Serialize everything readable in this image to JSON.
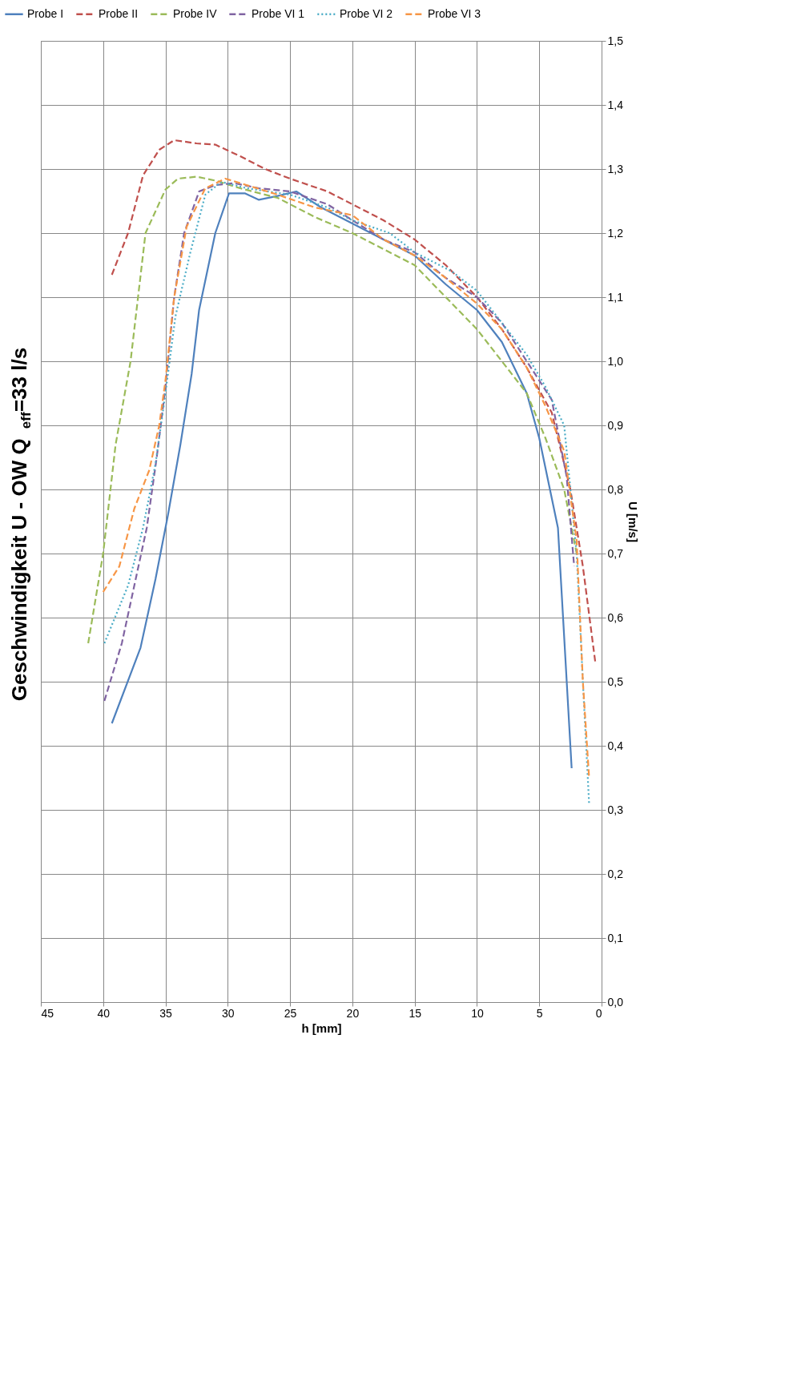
{
  "chart_data": {
    "type": "line",
    "title": "Geschwindigkeit U - OW Q$_{eff}$=33 l/s",
    "xlabel": "h [mm]",
    "ylabel": "U [m/s]",
    "xlim": [
      45,
      0
    ],
    "xticks": [
      0,
      5,
      10,
      15,
      20,
      25,
      30,
      35,
      40,
      45
    ],
    "ylim": [
      0,
      1.5
    ],
    "yticks": [
      {
        "value": 0,
        "label": "0,0"
      },
      {
        "value": 0.1,
        "label": "0,1"
      },
      {
        "value": 0.2,
        "label": "0,2"
      },
      {
        "value": 0.3,
        "label": "0,3"
      },
      {
        "value": 0.4,
        "label": "0,4"
      },
      {
        "value": 0.5,
        "label": "0,5"
      },
      {
        "value": 0.6,
        "label": "0,6"
      },
      {
        "value": 0.7,
        "label": "0,7"
      },
      {
        "value": 0.8,
        "label": "0,8"
      },
      {
        "value": 0.9,
        "label": "0,9"
      },
      {
        "value": 1.0,
        "label": "1,0"
      },
      {
        "value": 1.1,
        "label": "1,1"
      },
      {
        "value": 1.2,
        "label": "1,2"
      },
      {
        "value": 1.3,
        "label": "1,3"
      },
      {
        "value": 1.4,
        "label": "1,4"
      },
      {
        "value": 1.5,
        "label": "1,5"
      }
    ],
    "grid": true,
    "legend": "top",
    "marker": "none",
    "series": [
      {
        "name": "Probe I",
        "color": "#4f81bd",
        "line_style": "solid",
        "x": [
          39.3,
          37.0,
          35.8,
          34.8,
          33.8,
          32.9,
          32.3,
          31.0,
          29.9,
          28.6,
          27.5,
          26.0,
          24.5,
          22.5,
          20.0,
          17.5,
          15.0,
          12.5,
          10.0,
          8.0,
          6.0,
          5.0,
          3.5,
          2.4
        ],
        "values": [
          0.435,
          0.553,
          0.66,
          0.76,
          0.87,
          0.98,
          1.08,
          1.2,
          1.262,
          1.262,
          1.252,
          1.258,
          1.265,
          1.24,
          1.215,
          1.19,
          1.165,
          1.12,
          1.08,
          1.03,
          0.95,
          0.88,
          0.74,
          0.365
        ]
      },
      {
        "name": "Probe II",
        "color": "#c0504d",
        "line_style": "dashed",
        "x": [
          39.3,
          38.0,
          36.8,
          35.5,
          34.3,
          32.5,
          31.0,
          29.0,
          27.0,
          25.0,
          22.0,
          20.0,
          17.5,
          15.0,
          12.5,
          10.0,
          8.0,
          6.0,
          4.0,
          2.5,
          1.5,
          0.5
        ],
        "values": [
          1.135,
          1.2,
          1.29,
          1.33,
          1.345,
          1.34,
          1.338,
          1.32,
          1.3,
          1.285,
          1.265,
          1.245,
          1.22,
          1.19,
          1.15,
          1.1,
          1.05,
          0.99,
          0.92,
          0.8,
          0.68,
          0.53
        ]
      },
      {
        "name": "Probe IV",
        "color": "#9bbb59",
        "line_style": "dashed",
        "x": [
          41.2,
          40.0,
          39.0,
          37.8,
          36.6,
          35.0,
          34.0,
          32.5,
          31.0,
          29.0,
          26.0,
          23.0,
          20.0,
          18.0,
          15.0,
          12.0,
          10.0,
          8.0,
          6.0,
          4.5,
          3.0,
          2.0
        ],
        "values": [
          0.56,
          0.7,
          0.87,
          1.0,
          1.2,
          1.268,
          1.285,
          1.288,
          1.282,
          1.27,
          1.255,
          1.225,
          1.2,
          1.18,
          1.15,
          1.09,
          1.05,
          1.0,
          0.95,
          0.88,
          0.8,
          0.7
        ]
      },
      {
        "name": "Probe VI 1",
        "color": "#8064a2",
        "line_style": "dashed",
        "x": [
          39.9,
          38.5,
          37.5,
          36.5,
          35.7,
          35.0,
          34.3,
          33.5,
          32.3,
          31.0,
          29.5,
          27.5,
          25.0,
          22.0,
          20.0,
          17.5,
          15.0,
          12.5,
          10.0,
          8.0,
          6.0,
          4.0,
          2.8,
          2.2
        ],
        "values": [
          0.47,
          0.56,
          0.65,
          0.74,
          0.85,
          0.96,
          1.1,
          1.2,
          1.265,
          1.275,
          1.278,
          1.27,
          1.265,
          1.245,
          1.22,
          1.19,
          1.17,
          1.13,
          1.1,
          1.06,
          1.0,
          0.94,
          0.82,
          0.68
        ]
      },
      {
        "name": "Probe VI 2",
        "color": "#4bacc6",
        "line_style": "dotted",
        "x": [
          39.9,
          38.0,
          36.8,
          35.8,
          35.0,
          34.2,
          33.0,
          31.8,
          30.5,
          28.5,
          25.0,
          22.0,
          20.0,
          17.0,
          15.0,
          12.0,
          10.0,
          8.0,
          6.0,
          4.5,
          3.0,
          2.0,
          1.5,
          1.0
        ],
        "values": [
          0.56,
          0.65,
          0.74,
          0.84,
          0.95,
          1.07,
          1.17,
          1.26,
          1.28,
          1.27,
          1.26,
          1.24,
          1.22,
          1.2,
          1.17,
          1.14,
          1.11,
          1.06,
          1.01,
          0.96,
          0.9,
          0.7,
          0.5,
          0.31
        ]
      },
      {
        "name": "Probe VI 3",
        "color": "#f79646",
        "line_style": "dashed",
        "x": [
          40.0,
          38.7,
          37.5,
          36.3,
          35.5,
          35.0,
          34.3,
          33.3,
          31.8,
          30.2,
          28.5,
          26.0,
          23.0,
          20.0,
          17.5,
          15.0,
          12.5,
          10.0,
          8.0,
          6.0,
          4.5,
          3.0,
          2.0,
          1.5,
          1.0
        ],
        "values": [
          0.64,
          0.68,
          0.77,
          0.83,
          0.9,
          0.97,
          1.1,
          1.21,
          1.27,
          1.285,
          1.275,
          1.26,
          1.24,
          1.228,
          1.19,
          1.165,
          1.13,
          1.09,
          1.05,
          0.99,
          0.93,
          0.86,
          0.72,
          0.5,
          0.35
        ]
      }
    ]
  }
}
